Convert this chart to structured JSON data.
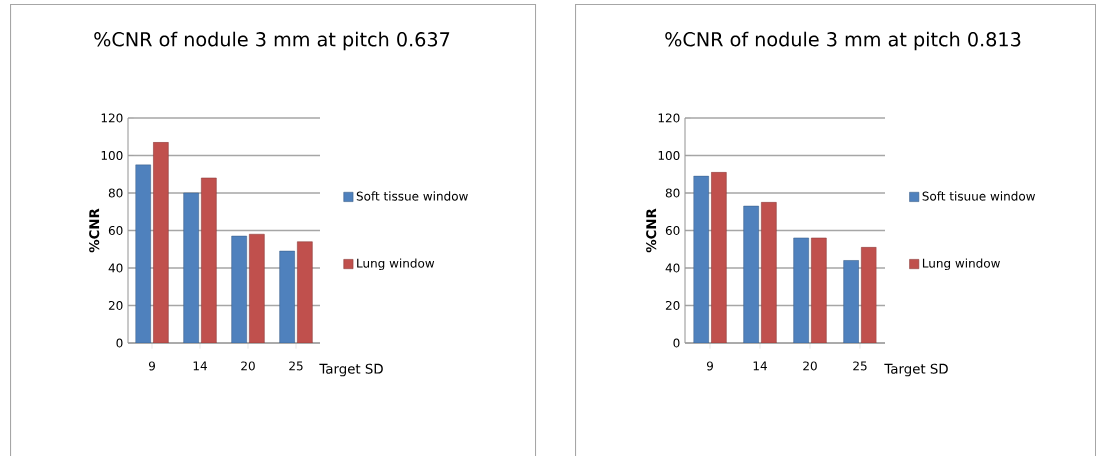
{
  "chart_data": [
    {
      "type": "bar",
      "title": "%CNR of nodule 3 mm at  pitch 0.637",
      "xlabel": "Target SD",
      "ylabel": "%CNR",
      "categories": [
        "9",
        "14",
        "20",
        "25"
      ],
      "series": [
        {
          "name": "Soft tissue window",
          "color": "#4f81bd",
          "values": [
            95,
            80,
            57,
            49
          ]
        },
        {
          "name": "Lung window",
          "color": "#c0504d",
          "values": [
            107,
            88,
            58,
            54
          ]
        }
      ],
      "ylim": [
        0,
        120
      ],
      "yticks": [
        0,
        20,
        40,
        60,
        80,
        100,
        120
      ],
      "grid": "y",
      "legend": "right"
    },
    {
      "type": "bar",
      "title": "%CNR of nodule 3 mm at  pitch 0.813",
      "xlabel": "Target SD",
      "ylabel": "%CNR",
      "categories": [
        "9",
        "14",
        "20",
        "25"
      ],
      "series": [
        {
          "name": "Soft tisuue window",
          "color": "#4f81bd",
          "values": [
            89,
            73,
            56,
            44
          ]
        },
        {
          "name": "Lung window",
          "color": "#c0504d",
          "values": [
            91,
            75,
            56,
            51
          ]
        }
      ],
      "ylim": [
        0,
        120
      ],
      "yticks": [
        0,
        20,
        40,
        60,
        80,
        100,
        120
      ],
      "grid": "y",
      "legend": "right"
    }
  ]
}
